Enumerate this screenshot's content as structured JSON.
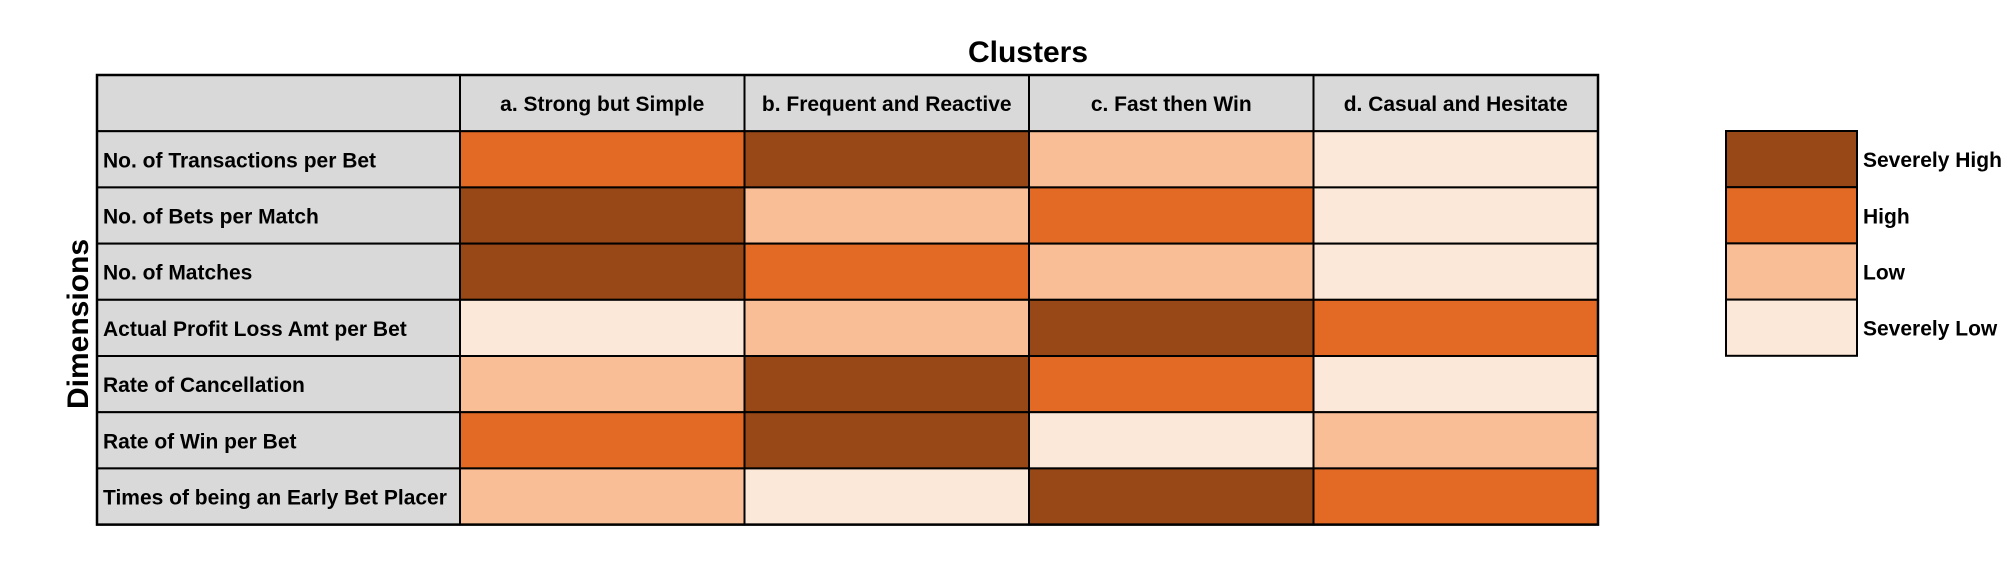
{
  "chart_data": {
    "type": "heatmap",
    "title": "Clusters",
    "ylabel": "Dimensions",
    "columns": [
      "a. Strong but Simple",
      "b. Frequent and Reactive",
      "c. Fast then Win",
      "d. Casual and Hesitate"
    ],
    "rows": [
      "No. of Transactions per Bet",
      "No. of Bets per Match",
      "No. of Matches",
      "Actual Profit Loss Amt per Bet",
      "Rate of Cancellation",
      "Rate of Win per Bet",
      "Times of being an Early Bet Placer"
    ],
    "levels": [
      "Severely High",
      "High",
      "Low",
      "Severely Low"
    ],
    "colors": {
      "Severely High": "#974816",
      "High": "#E26A24",
      "Low": "#F9BE96",
      "Severely Low": "#FCE8D9"
    },
    "header_fill": "#D9D9D9",
    "values": [
      [
        "High",
        "Severely High",
        "Low",
        "Severely Low"
      ],
      [
        "Severely High",
        "Low",
        "High",
        "Severely Low"
      ],
      [
        "Severely High",
        "High",
        "Low",
        "Severely Low"
      ],
      [
        "Severely Low",
        "Low",
        "Severely High",
        "High"
      ],
      [
        "Low",
        "Severely High",
        "High",
        "Severely Low"
      ],
      [
        "High",
        "Severely High",
        "Severely Low",
        "Low"
      ],
      [
        "Low",
        "Severely Low",
        "Severely High",
        "High"
      ]
    ]
  }
}
